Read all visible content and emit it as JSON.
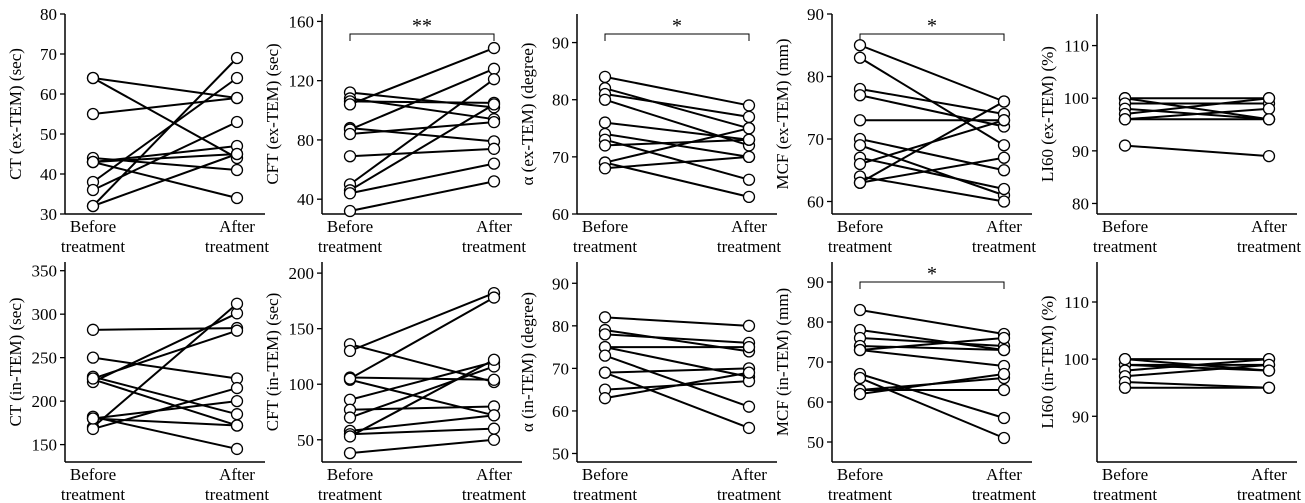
{
  "x_categories": [
    "Before\ntreatment",
    "After\ntreatment"
  ],
  "chart_data": [
    {
      "type": "line",
      "ylabel": "CT (ex-TEM) (sec)",
      "ylim": [
        30,
        80
      ],
      "yticks": [
        30,
        40,
        50,
        60,
        70,
        80
      ],
      "significance": "",
      "series": [
        {
          "values": [
            64,
            59
          ]
        },
        {
          "values": [
            64,
            44
          ]
        },
        {
          "values": [
            55,
            59
          ]
        },
        {
          "values": [
            44,
            41
          ]
        },
        {
          "values": [
            43,
            34
          ]
        },
        {
          "values": [
            43,
            47
          ]
        },
        {
          "values": [
            43,
            45
          ]
        },
        {
          "values": [
            38,
            64
          ]
        },
        {
          "values": [
            36,
            53
          ]
        },
        {
          "values": [
            32,
            45
          ]
        },
        {
          "values": [
            32,
            69
          ]
        }
      ]
    },
    {
      "type": "line",
      "ylabel": "CFT (ex-TEM) (sec)",
      "ylim": [
        30,
        165
      ],
      "yticks": [
        40,
        80,
        120,
        160
      ],
      "significance": "**",
      "series": [
        {
          "values": [
            112,
            102
          ]
        },
        {
          "values": [
            108,
            94
          ]
        },
        {
          "values": [
            106,
            105
          ]
        },
        {
          "values": [
            88,
            79
          ]
        },
        {
          "values": [
            87,
            128
          ]
        },
        {
          "values": [
            84,
            92
          ]
        },
        {
          "values": [
            69,
            74
          ]
        },
        {
          "values": [
            50,
            121
          ]
        },
        {
          "values": [
            46,
            104
          ]
        },
        {
          "values": [
            44,
            64
          ]
        },
        {
          "values": [
            32,
            52
          ]
        },
        {
          "values": [
            104,
            142
          ]
        }
      ]
    },
    {
      "type": "line",
      "ylabel": "α (ex-TEM) (degree)",
      "ylim": [
        60,
        95
      ],
      "yticks": [
        60,
        70,
        80,
        90
      ],
      "significance": "*",
      "series": [
        {
          "values": [
            84,
            79
          ]
        },
        {
          "values": [
            82,
            75
          ]
        },
        {
          "values": [
            81,
            77
          ]
        },
        {
          "values": [
            80,
            72
          ]
        },
        {
          "values": [
            76,
            73
          ]
        },
        {
          "values": [
            74,
            70
          ]
        },
        {
          "values": [
            73,
            66
          ]
        },
        {
          "values": [
            72,
            73
          ]
        },
        {
          "values": [
            69,
            63
          ]
        },
        {
          "values": [
            69,
            75
          ]
        },
        {
          "values": [
            68,
            70
          ]
        }
      ]
    },
    {
      "type": "line",
      "ylabel": "MCF (ex-TEM) (mm)",
      "ylim": [
        58,
        90
      ],
      "yticks": [
        60,
        70,
        80,
        90
      ],
      "significance": "*",
      "series": [
        {
          "values": [
            85,
            76
          ]
        },
        {
          "values": [
            83,
            69
          ]
        },
        {
          "values": [
            78,
            74
          ]
        },
        {
          "values": [
            77,
            72
          ]
        },
        {
          "values": [
            73,
            73
          ]
        },
        {
          "values": [
            70,
            65
          ]
        },
        {
          "values": [
            69,
            61
          ]
        },
        {
          "values": [
            67,
            62
          ]
        },
        {
          "values": [
            66,
            73
          ]
        },
        {
          "values": [
            64,
            60
          ]
        },
        {
          "values": [
            63,
            67
          ]
        },
        {
          "values": [
            63,
            76
          ]
        }
      ]
    },
    {
      "type": "line",
      "ylabel": "LI60 (ex-TEM) (%)",
      "ylim": [
        78,
        116
      ],
      "yticks": [
        80,
        90,
        100,
        110
      ],
      "significance": "",
      "series": [
        {
          "values": [
            100,
            96
          ]
        },
        {
          "values": [
            100,
            100
          ]
        },
        {
          "values": [
            99,
            99
          ]
        },
        {
          "values": [
            98,
            96
          ]
        },
        {
          "values": [
            97,
            100
          ]
        },
        {
          "values": [
            96,
            98
          ]
        },
        {
          "values": [
            96,
            96
          ]
        },
        {
          "values": [
            91,
            89
          ]
        }
      ]
    },
    {
      "type": "line",
      "ylabel": "CT (in-TEM) (sec)",
      "ylim": [
        130,
        360
      ],
      "yticks": [
        150,
        200,
        250,
        300,
        350
      ],
      "significance": "",
      "series": [
        {
          "values": [
            282,
            284
          ]
        },
        {
          "values": [
            250,
            226
          ]
        },
        {
          "values": [
            228,
            185
          ]
        },
        {
          "values": [
            225,
            172
          ]
        },
        {
          "values": [
            222,
            301
          ]
        },
        {
          "values": [
            182,
            145
          ]
        },
        {
          "values": [
            180,
            172
          ]
        },
        {
          "values": [
            170,
            312
          ]
        },
        {
          "values": [
            168,
            215
          ]
        },
        {
          "values": [
            180,
            200
          ]
        },
        {
          "values": [
            226,
            281
          ]
        }
      ]
    },
    {
      "type": "line",
      "ylabel": "CFT (in-TEM) (sec)",
      "ylim": [
        30,
        210
      ],
      "yticks": [
        50,
        100,
        150,
        200
      ],
      "significance": "",
      "series": [
        {
          "values": [
            136,
            102
          ]
        },
        {
          "values": [
            130,
            182
          ]
        },
        {
          "values": [
            106,
            104
          ]
        },
        {
          "values": [
            104,
            72
          ]
        },
        {
          "values": [
            86,
            120
          ]
        },
        {
          "values": [
            77,
            80
          ]
        },
        {
          "values": [
            70,
            116
          ]
        },
        {
          "values": [
            58,
            72
          ]
        },
        {
          "values": [
            55,
            60
          ]
        },
        {
          "values": [
            53,
            122
          ]
        },
        {
          "values": [
            38,
            50
          ]
        },
        {
          "values": [
            105,
            178
          ]
        }
      ]
    },
    {
      "type": "line",
      "ylabel": "α (in-TEM) (degree)",
      "ylim": [
        48,
        95
      ],
      "yticks": [
        50,
        60,
        70,
        80,
        90
      ],
      "significance": "",
      "series": [
        {
          "values": [
            82,
            80
          ]
        },
        {
          "values": [
            79,
            74
          ]
        },
        {
          "values": [
            78,
            76
          ]
        },
        {
          "values": [
            75,
            75
          ]
        },
        {
          "values": [
            75,
            68
          ]
        },
        {
          "values": [
            73,
            61
          ]
        },
        {
          "values": [
            69,
            70
          ]
        },
        {
          "values": [
            69,
            56
          ]
        },
        {
          "values": [
            65,
            67
          ]
        },
        {
          "values": [
            63,
            69
          ]
        }
      ]
    },
    {
      "type": "line",
      "ylabel": "MCF (in-TEM) (mm)",
      "ylim": [
        45,
        95
      ],
      "yticks": [
        50,
        60,
        70,
        80,
        90
      ],
      "significance": "*",
      "series": [
        {
          "values": [
            83,
            77
          ]
        },
        {
          "values": [
            78,
            73
          ]
        },
        {
          "values": [
            76,
            74
          ]
        },
        {
          "values": [
            74,
            73
          ]
        },
        {
          "values": [
            73,
            69
          ]
        },
        {
          "values": [
            67,
            56
          ]
        },
        {
          "values": [
            66,
            51
          ]
        },
        {
          "values": [
            63,
            66
          ]
        },
        {
          "values": [
            63,
            63
          ]
        },
        {
          "values": [
            62,
            67
          ]
        },
        {
          "values": [
            73,
            76
          ]
        }
      ]
    },
    {
      "type": "line",
      "ylabel": "LI60 (in-TEM) (%)",
      "ylim": [
        82,
        117
      ],
      "yticks": [
        90,
        100,
        110
      ],
      "significance": "",
      "series": [
        {
          "values": [
            100,
            100
          ]
        },
        {
          "values": [
            99,
            99
          ]
        },
        {
          "values": [
            99,
            98
          ]
        },
        {
          "values": [
            98,
            100
          ]
        },
        {
          "values": [
            97,
            99
          ]
        },
        {
          "values": [
            96,
            95
          ]
        },
        {
          "values": [
            95,
            95
          ]
        },
        {
          "values": [
            100,
            98
          ]
        }
      ]
    }
  ]
}
